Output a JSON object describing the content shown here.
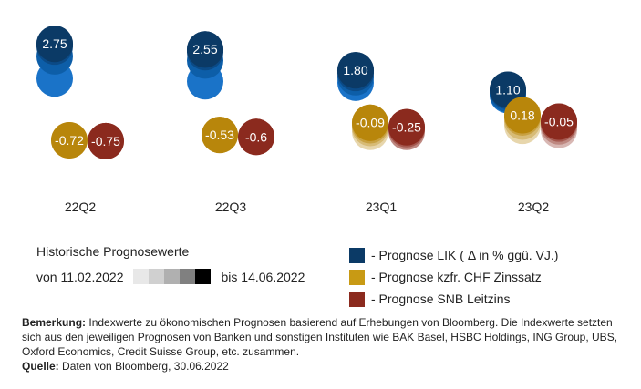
{
  "chart_data": {
    "type": "scatter",
    "categories": [
      "22Q2",
      "22Q3",
      "23Q1",
      "23Q2"
    ],
    "series": [
      {
        "name": "- Prognose LIK ( Δ in % ggü. VJ.)",
        "color": "#0b3a66",
        "values": [
          2.75,
          2.55,
          1.8,
          1.1
        ],
        "history": [
          [
            2.75,
            2.65,
            2.3,
            1.5
          ],
          [
            2.55,
            2.45,
            2.15,
            1.4
          ],
          [
            1.8,
            1.7,
            1.55,
            1.35
          ],
          [
            1.1,
            1.05,
            0.95,
            0.9
          ]
        ]
      },
      {
        "name": "- Prognose kzfr. CHF Zinssatz",
        "color": "#b8860b",
        "values": [
          -0.72,
          -0.53,
          -0.09,
          0.18
        ],
        "history": [
          [
            -0.72
          ],
          [
            -0.53
          ],
          [
            -0.09,
            -0.18,
            -0.28,
            -0.42
          ],
          [
            0.18,
            0.1,
            -0.05,
            -0.2
          ]
        ]
      },
      {
        "name": "- Prognose SNB Leitzins",
        "color": "#8b2a1e",
        "values": [
          -0.75,
          -0.6,
          -0.25,
          -0.05
        ],
        "history": [
          [
            -0.75
          ],
          [
            -0.6
          ],
          [
            -0.25,
            -0.32,
            -0.42
          ],
          [
            -0.05,
            -0.12,
            -0.22,
            -0.35
          ]
        ]
      }
    ],
    "labels": [
      [
        "2.75",
        "-0.72",
        "-0.75"
      ],
      [
        "2.55",
        "-0.53",
        "-0.6"
      ],
      [
        "1.80",
        "-0.09",
        "-0.25"
      ],
      [
        "1.10",
        "0.18",
        "-0.05"
      ]
    ]
  },
  "history_title": "Historische Prognosewerte",
  "history_from": "von 11.02.2022",
  "history_to": "bis 14.06.2022",
  "history_shades": [
    "#e8e8e8",
    "#d0d0d0",
    "#b0b0b0",
    "#808080",
    "#000000"
  ],
  "legend": [
    {
      "label": "- Prognose LIK ( Δ in % ggü. VJ.)",
      "color": "#0b3a66"
    },
    {
      "label": "- Prognose kzfr. CHF Zinssatz",
      "color": "#c89a14"
    },
    {
      "label": "- Prognose SNB Leitzins",
      "color": "#8b2a1e"
    }
  ],
  "note": {
    "remark_label": "Bemerkung:",
    "remark_text": "Indexwerte zu ökonomischen Prognosen basierend auf Erhebungen von Bloomberg. Die Indexwerte setzten sich aus den jeweiligen Prognosen von Banken und sonstigen Instituten wie BAK Basel, HSBC Holdings, ING Group, UBS, Oxford Economics, Credit Suisse Group, etc. zusammen.",
    "source_label": "Quelle:",
    "source_text": "Daten von Bloomberg, 30.06.2022"
  }
}
